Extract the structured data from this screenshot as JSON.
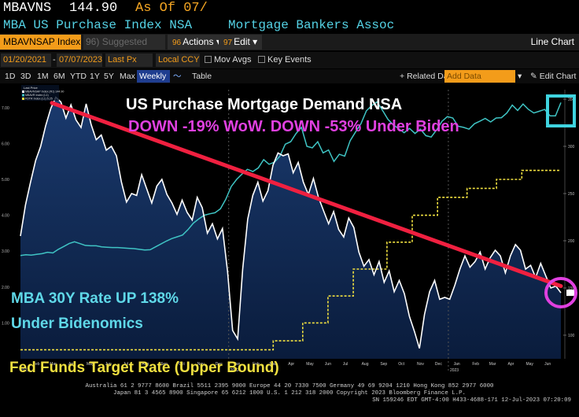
{
  "terminal": {
    "ticker": "MBAVNS",
    "last_value": "144.90",
    "as_of": "As Of 07/",
    "security_name": "MBA US Purchase Index NSA",
    "source": "Mortgage Bankers Assoc"
  },
  "toolbar": {
    "index_field": "MBAVNSAP Index",
    "suggested": "Suggested Charts",
    "suggested_key": "96",
    "actions": "Actions",
    "actions_key": "96",
    "edit": "Edit",
    "edit_key": "97",
    "chart_type": "Line Chart"
  },
  "controls": {
    "start_date": "01/20/2021",
    "end_date": "07/07/2023",
    "price_field": "Last Px",
    "currency": "Local CCY",
    "mov_avgs": "Mov Avgs",
    "key_events": "Key Events"
  },
  "ranges": {
    "items": [
      "1D",
      "3D",
      "1M",
      "6M",
      "YTD",
      "1Y",
      "5Y",
      "Max"
    ],
    "frequency": "Weekly",
    "table": "Table",
    "related": "Related Dat",
    "add_data_placeholder": "Add Data",
    "edit_chart": "Edit Chart"
  },
  "chart_data": {
    "type": "line",
    "title": "US Purchase Mortgage Demand NSA",
    "subtitle": "DOWN -19% WoW. DOWN -53% Under Biden",
    "annotations": [
      "MBA 30Y Rate UP 138%",
      "Under Bidenomics",
      "Fed Funds Target Rate (Upper Bound)"
    ],
    "legend": [
      "MBAVNSAP Index (R1) 144.90",
      "MBAVR Index (L1)",
      "FDTR Index (L1) 5.25"
    ],
    "legend_header": "Last Price",
    "legend_placement": "top-left",
    "x_range": [
      "2021-01-20",
      "2023-07-07"
    ],
    "x_tick_labels": [
      "Jan",
      "Feb",
      "Mar",
      "Apr",
      "May",
      "Jun",
      "Jul",
      "Aug",
      "Sep",
      "Oct",
      "Nov",
      "Dec",
      "Jan",
      "Feb",
      "Mar",
      "Apr",
      "May",
      "Jun",
      "Jul",
      "Aug",
      "Sep",
      "Oct",
      "Nov",
      "Dec",
      "Jan",
      "Feb",
      "Mar",
      "Apr",
      "May",
      "Jun",
      "Jul"
    ],
    "year_labels": [
      "2021",
      "2022",
      "2023"
    ],
    "right_axis_ticks": [
      "350",
      "300",
      "250",
      "200",
      "150",
      "100"
    ],
    "left_axis_ticks": [
      "7.00",
      "6.00",
      "5.00",
      "4.00",
      "3.00",
      "2.00",
      "1.00"
    ],
    "right_ylim": [
      75,
      360
    ],
    "left_ylim": [
      0,
      7.5
    ],
    "series": [
      {
        "name": "MBA Purchase Index NSA (R1)",
        "color": "#ffffff",
        "axis": "right",
        "values": [
          205,
          238,
          262,
          285,
          300,
          322,
          340,
          352,
          347,
          330,
          344,
          328,
          320,
          345,
          323,
          307,
          312,
          296,
          300,
          290,
          262,
          241,
          250,
          248,
          270,
          255,
          240,
          258,
          265,
          249,
          240,
          228,
          243,
          230,
          222,
          246,
          235,
          208,
          218,
          202,
          213,
          168,
          105,
          96,
          170,
          223,
          248,
          262,
          242,
          253,
          280,
          293,
          290,
          292,
          272,
          283,
          262,
          249,
          266,
          246,
          232,
          218,
          231,
          212,
          204,
          224,
          214,
          188,
          173,
          180,
          164,
          178,
          156,
          168,
          146,
          158,
          144,
          120,
          104,
          86,
          122,
          146,
          158,
          138,
          140,
          138,
          153,
          170,
          184,
          172,
          178,
          188,
          170,
          182,
          190,
          184,
          166,
          184,
          196,
          190,
          170,
          174,
          161,
          176,
          163,
          150,
          152,
          144.9
        ]
      },
      {
        "name": "MBA 30Y Contract Rate (L1)",
        "color": "#3fc4c4",
        "axis": "left",
        "values": [
          2.88,
          2.9,
          2.89,
          2.91,
          2.93,
          2.97,
          2.95,
          3.05,
          3.13,
          3.21,
          3.26,
          3.21,
          3.16,
          3.15,
          3.15,
          3.12,
          3.11,
          3.1,
          3.1,
          3.09,
          3.08,
          3.07,
          3.05,
          3.03,
          3.04,
          3.12,
          3.2,
          3.28,
          3.35,
          3.4,
          3.45,
          3.6,
          3.78,
          3.9,
          4.0,
          4.04,
          4.07,
          4.18,
          4.45,
          4.8,
          5.0,
          5.15,
          5.28,
          5.22,
          5.32,
          5.55,
          5.42,
          5.48,
          5.65,
          5.98,
          6.05,
          6.28,
          6.45,
          5.92,
          5.88,
          6.05,
          5.74,
          5.82,
          5.5,
          5.7,
          5.65,
          6.08,
          6.32,
          6.55,
          6.91,
          7.06,
          7.16,
          6.92,
          6.67,
          6.52,
          6.41,
          6.3,
          6.42,
          6.28,
          6.4,
          6.22,
          6.18,
          6.38,
          6.62,
          6.75,
          6.71,
          6.48,
          6.45,
          6.4,
          6.55,
          6.62,
          6.7,
          6.6,
          6.71,
          6.72,
          6.85,
          7.07,
          6.92,
          7.1,
          6.95,
          6.85,
          6.9,
          6.95,
          6.77,
          6.77,
          7.14
        ]
      },
      {
        "name": "Fed Funds Target Rate Upper Bound (L1)",
        "color": "#f0e040",
        "axis": "left",
        "step_points": [
          [
            "2021-01-20",
            0.25
          ],
          [
            "2022-03-16",
            0.5
          ],
          [
            "2022-05-04",
            1.0
          ],
          [
            "2022-06-15",
            1.75
          ],
          [
            "2022-07-27",
            2.5
          ],
          [
            "2022-09-21",
            3.25
          ],
          [
            "2022-11-02",
            4.0
          ],
          [
            "2022-12-14",
            4.5
          ],
          [
            "2023-02-01",
            4.75
          ],
          [
            "2023-03-22",
            5.0
          ],
          [
            "2023-05-03",
            5.25
          ],
          [
            "2023-07-07",
            5.25
          ]
        ]
      },
      {
        "name": "Trend line (annotation)",
        "color": "#f02040",
        "axis": "right",
        "values": [
          346,
          152
        ]
      }
    ]
  },
  "footer": {
    "line1": "Australia 61 2 9777 8600 Brazil 5511 2395 9000 Europe 44 20 7330 7500 Germany 49 69 9204 1210 Hong Kong 852 2977 6000",
    "line2": "Japan 81 3 4565 8900       Singapore 65 6212 1000       U.S. 1 212 318 2000       Copyright 2023 Bloomberg Finance L.P.",
    "line3": "SN 159246 EDT  GMT-4:00 H433-4688-171 12-Jul-2023 07:20:09"
  }
}
